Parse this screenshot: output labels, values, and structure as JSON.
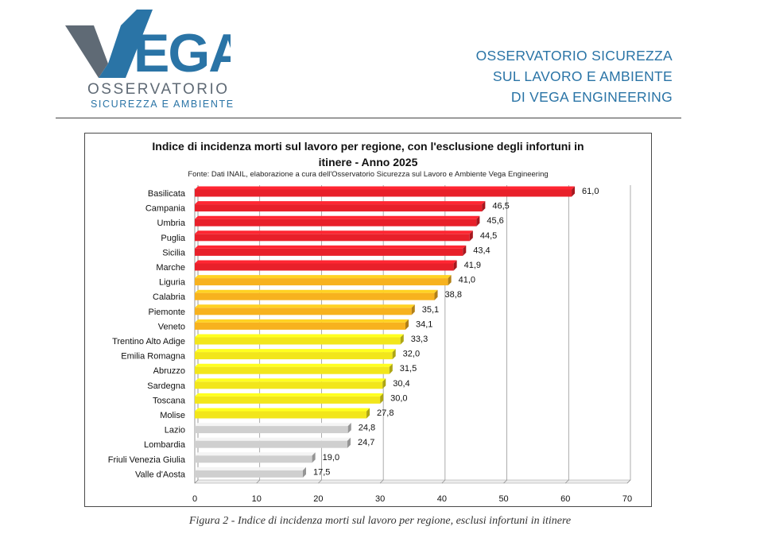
{
  "header": {
    "logo_word": "VEGA",
    "logo_line1": "OSSERVATORIO",
    "logo_line2": "SICUREZZA E AMBIENTE",
    "org_lines": [
      "OSSERVATORIO SICUREZZA",
      "SUL LAVORO E AMBIENTE",
      "DI VEGA ENGINEERING"
    ]
  },
  "caption": "Figura 2 - Indice di incidenza morti sul lavoro per regione, esclusi infortuni in itinere",
  "colors": {
    "red": "#e8202a",
    "orange": "#f7b21e",
    "yellow": "#f2e61b",
    "gray": "#cfcfcf",
    "brand_blue": "#2a74a6",
    "brand_gray": "#5f6a75"
  },
  "chart_data": {
    "type": "bar",
    "orientation": "horizontal",
    "title": "Indice di incidenza morti sul lavoro per regione, con l'esclusione degli infortuni in itinere - Anno 2025",
    "title_lines": [
      "Indice di incidenza morti sul lavoro per regione, con l'esclusione degli infortuni in",
      "itinere - Anno 2025"
    ],
    "subtitle": "Fonte: Dati INAIL, elaborazione a cura dell'Osservatorio Sicurezza sul Lavoro e Ambiente Vega Engineering",
    "categories": [
      "Basilicata",
      "Campania",
      "Umbria",
      "Puglia",
      "Sicilia",
      "Marche",
      "Liguria",
      "Calabria",
      "Piemonte",
      "Veneto",
      "Trentino Alto Adige",
      "Emilia Romagna",
      "Abruzzo",
      "Sardegna",
      "Toscana",
      "Molise",
      "Lazio",
      "Lombardia",
      "Friuli Venezia Giulia",
      "Valle d'Aosta"
    ],
    "values": [
      61.0,
      46.5,
      45.6,
      44.5,
      43.4,
      41.9,
      41.0,
      38.8,
      35.1,
      34.1,
      33.3,
      32.0,
      31.5,
      30.4,
      30.0,
      27.8,
      24.8,
      24.7,
      19.0,
      17.5
    ],
    "value_labels": [
      "61,0",
      "46,5",
      "45,6",
      "44,5",
      "43,4",
      "41,9",
      "41,0",
      "38,8",
      "35,1",
      "34,1",
      "33,3",
      "32,0",
      "31,5",
      "30,4",
      "30,0",
      "27,8",
      "24,8",
      "24,7",
      "19,0",
      "17,5"
    ],
    "bar_colors": [
      "red",
      "red",
      "red",
      "red",
      "red",
      "red",
      "orange",
      "orange",
      "orange",
      "orange",
      "yellow",
      "yellow",
      "yellow",
      "yellow",
      "yellow",
      "yellow",
      "gray",
      "gray",
      "gray",
      "gray"
    ],
    "xlim": [
      0,
      70
    ],
    "xticks": [
      0,
      10,
      20,
      30,
      40,
      50,
      60,
      70
    ],
    "xlabel": "",
    "ylabel": "",
    "grid": true,
    "legend": "none"
  }
}
